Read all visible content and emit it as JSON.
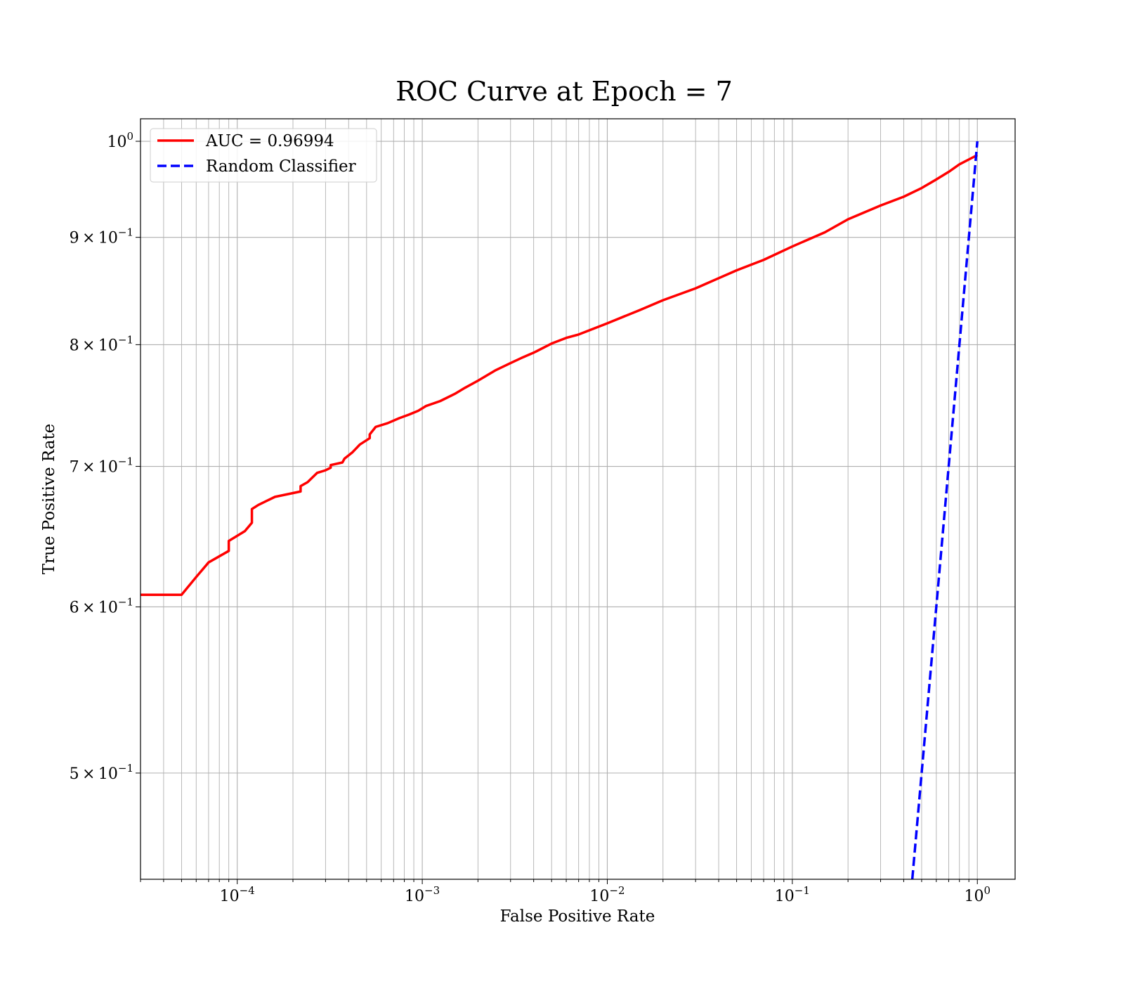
{
  "chart_data": {
    "type": "line",
    "title": "ROC Curve at Epoch = 7",
    "xlabel": "False Positive Rate",
    "ylabel": "True Positive Rate",
    "xscale": "log",
    "yscale": "log",
    "xlim": [
      3e-05,
      1.6
    ],
    "ylim": [
      0.445,
      1.025
    ],
    "grid": true,
    "legend_position": "top-left",
    "x_major_ticks": [
      {
        "value": 0.0001,
        "base": "10",
        "exp": "−4"
      },
      {
        "value": 0.001,
        "base": "10",
        "exp": "−3"
      },
      {
        "value": 0.01,
        "base": "10",
        "exp": "−2"
      },
      {
        "value": 0.1,
        "base": "10",
        "exp": "−1"
      },
      {
        "value": 1,
        "base": "10",
        "exp": "0"
      }
    ],
    "y_ticks": [
      {
        "value": 1.0,
        "mant": "",
        "base": "10",
        "exp": "0"
      },
      {
        "value": 0.9,
        "mant": "9",
        "base": "10",
        "exp": "−1"
      },
      {
        "value": 0.8,
        "mant": "8",
        "base": "10",
        "exp": "−1"
      },
      {
        "value": 0.7,
        "mant": "7",
        "base": "10",
        "exp": "−1"
      },
      {
        "value": 0.6,
        "mant": "6",
        "base": "10",
        "exp": "−1"
      },
      {
        "value": 0.5,
        "mant": "5",
        "base": "10",
        "exp": "−1"
      }
    ],
    "series": [
      {
        "name": "AUC = 0.96994",
        "color": "#ff0000",
        "style": "solid",
        "x": [
          3e-05,
          5e-05,
          6e-05,
          7e-05,
          9e-05,
          9e-05,
          0.00011,
          0.00012,
          0.00012,
          0.00013,
          0.00016,
          0.00022,
          0.00022,
          0.00024,
          0.00027,
          0.0003,
          0.00032,
          0.00032,
          0.00037,
          0.00038,
          0.00042,
          0.00046,
          0.00052,
          0.00052,
          0.00056,
          0.00065,
          0.00075,
          0.00085,
          0.00095,
          0.00105,
          0.00125,
          0.0015,
          0.0017,
          0.002,
          0.0025,
          0.003,
          0.0035,
          0.004,
          0.005,
          0.006,
          0.007,
          0.01,
          0.015,
          0.02,
          0.03,
          0.05,
          0.07,
          0.1,
          0.15,
          0.2,
          0.3,
          0.4,
          0.5,
          0.6,
          0.7,
          0.8,
          1.0
        ],
        "y": [
          0.608,
          0.608,
          0.62,
          0.63,
          0.638,
          0.645,
          0.652,
          0.658,
          0.668,
          0.671,
          0.677,
          0.681,
          0.685,
          0.688,
          0.695,
          0.697,
          0.699,
          0.701,
          0.703,
          0.706,
          0.711,
          0.717,
          0.722,
          0.725,
          0.731,
          0.734,
          0.738,
          0.741,
          0.744,
          0.748,
          0.752,
          0.758,
          0.763,
          0.769,
          0.778,
          0.784,
          0.789,
          0.793,
          0.801,
          0.806,
          0.809,
          0.819,
          0.831,
          0.84,
          0.851,
          0.868,
          0.878,
          0.891,
          0.905,
          0.918,
          0.932,
          0.941,
          0.95,
          0.959,
          0.967,
          0.975,
          0.985
        ]
      },
      {
        "name": "Random Classifier",
        "color": "#0000ff",
        "style": "dashed",
        "x": [
          0.445,
          1.0
        ],
        "y": [
          0.445,
          1.0
        ]
      }
    ]
  }
}
